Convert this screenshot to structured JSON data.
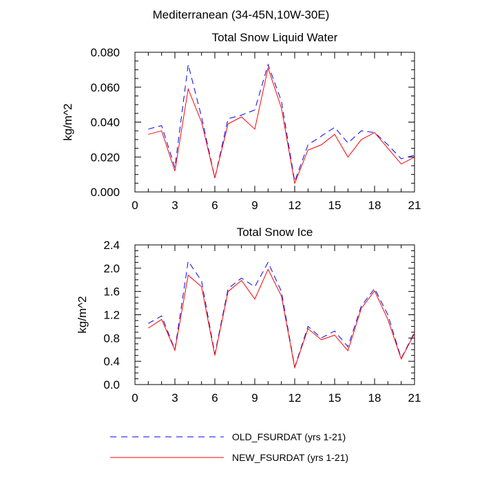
{
  "figure": {
    "region_title": "Mediterranean (34-45N,10W-30E)"
  },
  "colors": {
    "old_series": "#0000ff",
    "new_series": "#ff0000",
    "axis": "#000000"
  },
  "legend": {
    "items": [
      {
        "label": "OLD_FSURDAT (yrs 1-21)",
        "style": "dashed",
        "color": "#0000ff"
      },
      {
        "label": "NEW_FSURDAT (yrs 1-21)",
        "style": "solid",
        "color": "#ff0000"
      }
    ]
  },
  "chart_data": [
    {
      "type": "line",
      "title": "Total Snow Liquid Water",
      "xlabel": "",
      "ylabel": "kg/m^2",
      "xlim": [
        0,
        21
      ],
      "ylim": [
        0,
        0.08
      ],
      "x_ticks": [
        0,
        3,
        6,
        9,
        12,
        15,
        18,
        21
      ],
      "y_ticks": [
        "0.000",
        "0.020",
        "0.040",
        "0.060",
        "0.080"
      ],
      "y_tick_values": [
        0,
        0.02,
        0.04,
        0.06,
        0.08
      ],
      "y_minor_step": 0.005,
      "x": [
        1,
        2,
        3,
        4,
        5,
        6,
        7,
        8,
        9,
        10,
        11,
        12,
        13,
        14,
        15,
        16,
        17,
        18,
        19,
        20,
        21
      ],
      "series": [
        {
          "name": "OLD_FSURDAT (yrs 1-21)",
          "style": "dashed",
          "color": "#0000ff",
          "values": [
            0.036,
            0.038,
            0.014,
            0.073,
            0.043,
            0.008,
            0.042,
            0.044,
            0.047,
            0.073,
            0.052,
            0.006,
            0.027,
            0.032,
            0.037,
            0.028,
            0.035,
            0.034,
            0.027,
            0.019,
            0.021
          ]
        },
        {
          "name": "NEW_FSURDAT (yrs 1-21)",
          "style": "solid",
          "color": "#ff0000",
          "values": [
            0.033,
            0.035,
            0.012,
            0.059,
            0.04,
            0.008,
            0.039,
            0.043,
            0.036,
            0.071,
            0.048,
            0.005,
            0.024,
            0.027,
            0.033,
            0.02,
            0.03,
            0.034,
            0.025,
            0.016,
            0.02
          ]
        }
      ]
    },
    {
      "type": "line",
      "title": "Total Snow Ice",
      "xlabel": "",
      "ylabel": "kg/m^2",
      "xlim": [
        0,
        21
      ],
      "ylim": [
        0,
        2.4
      ],
      "x_ticks": [
        0,
        3,
        6,
        9,
        12,
        15,
        18,
        21
      ],
      "y_ticks": [
        "0.0",
        "0.4",
        "0.8",
        "1.2",
        "1.6",
        "2.0",
        "2.4"
      ],
      "y_tick_values": [
        0,
        0.4,
        0.8,
        1.2,
        1.6,
        2.0,
        2.4
      ],
      "y_minor_step": 0.1,
      "x": [
        1,
        2,
        3,
        4,
        5,
        6,
        7,
        8,
        9,
        10,
        11,
        12,
        13,
        14,
        15,
        16,
        17,
        18,
        19,
        20,
        21
      ],
      "series": [
        {
          "name": "OLD_FSURDAT (yrs 1-21)",
          "style": "dashed",
          "color": "#0000ff",
          "values": [
            1.05,
            1.18,
            0.6,
            2.12,
            1.78,
            0.52,
            1.65,
            1.83,
            1.68,
            2.1,
            1.6,
            0.3,
            1.0,
            0.8,
            0.92,
            0.65,
            1.35,
            1.65,
            1.2,
            0.45,
            0.9
          ]
        },
        {
          "name": "NEW_FSURDAT (yrs 1-21)",
          "style": "solid",
          "color": "#ff0000",
          "values": [
            0.97,
            1.12,
            0.59,
            1.88,
            1.68,
            0.5,
            1.6,
            1.79,
            1.47,
            1.98,
            1.52,
            0.29,
            0.96,
            0.77,
            0.85,
            0.58,
            1.31,
            1.61,
            1.12,
            0.44,
            0.88
          ]
        }
      ]
    }
  ]
}
